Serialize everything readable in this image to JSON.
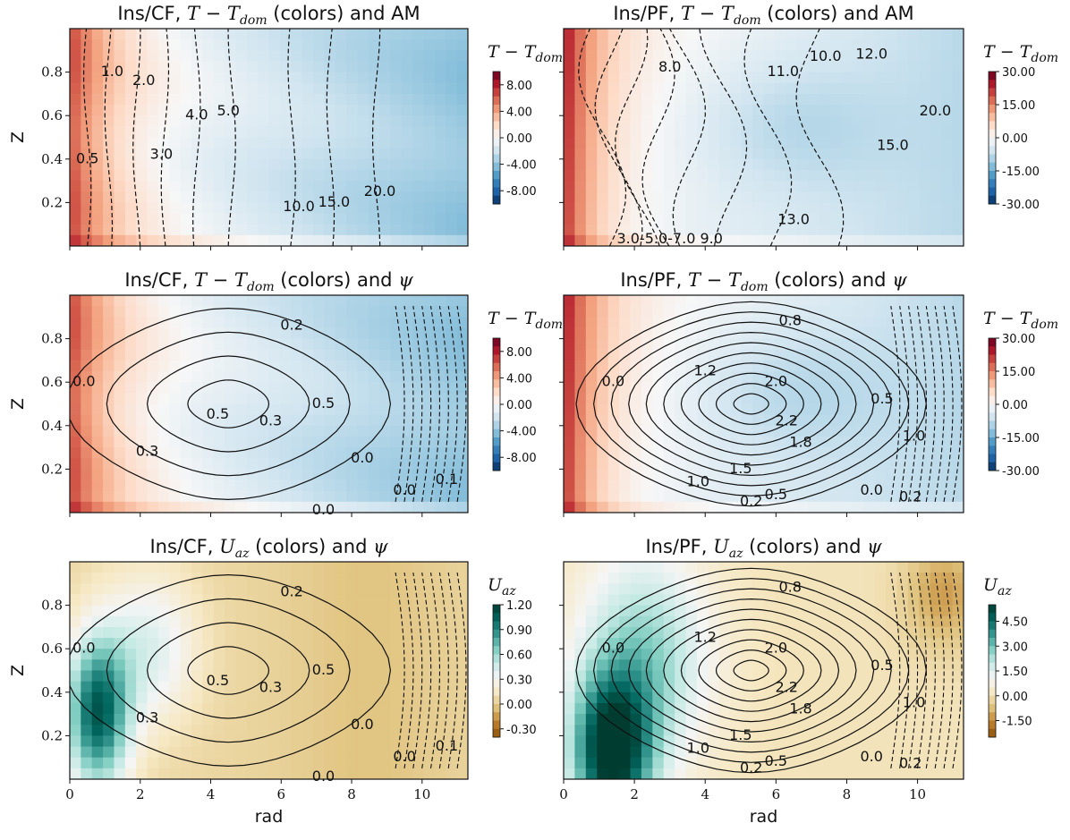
{
  "chart_data": [
    {
      "type": "heatmap",
      "title_parts": [
        "Ins/CF, ",
        "T",
        " − ",
        "T",
        "dom",
        " (colors) and AM"
      ],
      "xlabel": "",
      "ylabel": "Z",
      "xlim": [
        0,
        11.3
      ],
      "ylim": [
        0,
        1
      ],
      "xticks": [
        0,
        2,
        4,
        6,
        8,
        10
      ],
      "yticks": [
        0.2,
        0.4,
        0.6,
        0.8
      ],
      "colormap": "RdBu_r",
      "colorbar_label_parts": [
        "T",
        " − ",
        "T",
        "dom"
      ],
      "colorbar_ticks": [
        "8.00",
        "4.00",
        "0.00",
        "-4.00",
        "-8.00"
      ],
      "colorbar_range": [
        -10,
        10
      ],
      "contour_labels": [
        {
          "text": "0.5",
          "x": 0.5,
          "y": 0.4
        },
        {
          "text": "1.0",
          "x": 1.2,
          "y": 0.8
        },
        {
          "text": "2.0",
          "x": 2.1,
          "y": 0.76
        },
        {
          "text": "3.0",
          "x": 2.6,
          "y": 0.42
        },
        {
          "text": "4.0",
          "x": 3.6,
          "y": 0.6
        },
        {
          "text": "5.0",
          "x": 4.5,
          "y": 0.62
        },
        {
          "text": "10.0",
          "x": 6.5,
          "y": 0.18
        },
        {
          "text": "15.0",
          "x": 7.5,
          "y": 0.2
        },
        {
          "text": "20.0",
          "x": 8.8,
          "y": 0.25
        }
      ]
    },
    {
      "type": "heatmap",
      "title_parts": [
        "Ins/PF, ",
        "T",
        " − ",
        "T",
        "dom",
        " (colors) and AM"
      ],
      "xlabel": "",
      "ylabel": "",
      "xlim": [
        0,
        11.3
      ],
      "ylim": [
        0,
        1
      ],
      "xticks": [
        0,
        2,
        4,
        6,
        8,
        10
      ],
      "yticks": [
        0.2,
        0.4,
        0.6,
        0.8
      ],
      "colormap": "RdBu_r",
      "colorbar_label_parts": [
        "T",
        " − ",
        "T",
        "dom"
      ],
      "colorbar_ticks": [
        "30.00",
        "15.00",
        "0.00",
        "-15.00",
        "-30.00"
      ],
      "colorbar_range": [
        -30,
        30
      ],
      "contour_labels": [
        {
          "text": "8.0",
          "x": 3.0,
          "y": 0.82
        },
        {
          "text": "11.0",
          "x": 6.2,
          "y": 0.8
        },
        {
          "text": "10.0",
          "x": 7.4,
          "y": 0.87
        },
        {
          "text": "12.0",
          "x": 8.7,
          "y": 0.88
        },
        {
          "text": "20.0",
          "x": 10.5,
          "y": 0.62
        },
        {
          "text": "15.0",
          "x": 9.3,
          "y": 0.46
        },
        {
          "text": "13.0",
          "x": 6.5,
          "y": 0.12
        },
        {
          "text": "3.0-5.0-7.0 9.0",
          "x": 3.0,
          "y": 0.03
        }
      ]
    },
    {
      "type": "heatmap",
      "title_parts": [
        "Ins/CF, ",
        "T",
        " − ",
        "T",
        "dom",
        " (colors) and ",
        "ψ"
      ],
      "xlabel": "",
      "ylabel": "Z",
      "xlim": [
        0,
        11.3
      ],
      "ylim": [
        0,
        1
      ],
      "xticks": [
        0,
        2,
        4,
        6,
        8,
        10
      ],
      "yticks": [
        0.2,
        0.4,
        0.6,
        0.8
      ],
      "colormap": "RdBu_r",
      "colorbar_label_parts": [
        "T",
        " − ",
        "T",
        "dom"
      ],
      "colorbar_ticks": [
        "8.00",
        "4.00",
        "0.00",
        "-4.00",
        "-8.00"
      ],
      "colorbar_range": [
        -10,
        10
      ],
      "contour_labels": [
        {
          "text": "0.0",
          "x": 0.4,
          "y": 0.6
        },
        {
          "text": "0.2",
          "x": 6.3,
          "y": 0.86
        },
        {
          "text": "0.5",
          "x": 4.2,
          "y": 0.45
        },
        {
          "text": "0.3",
          "x": 5.7,
          "y": 0.42
        },
        {
          "text": "0.5",
          "x": 7.2,
          "y": 0.5
        },
        {
          "text": "0.3",
          "x": 2.2,
          "y": 0.28
        },
        {
          "text": "0.0",
          "x": 8.3,
          "y": 0.25
        },
        {
          "text": "0.0",
          "x": 9.5,
          "y": 0.1
        },
        {
          "text": "0.1",
          "x": 10.7,
          "y": 0.15
        },
        {
          "text": "0.0",
          "x": 7.2,
          "y": 0.01
        }
      ]
    },
    {
      "type": "heatmap",
      "title_parts": [
        "Ins/PF, ",
        "T",
        " − ",
        "T",
        "dom",
        " (colors) and ",
        "ψ"
      ],
      "xlabel": "",
      "ylabel": "",
      "xlim": [
        0,
        11.3
      ],
      "ylim": [
        0,
        1
      ],
      "xticks": [
        0,
        2,
        4,
        6,
        8,
        10
      ],
      "yticks": [
        0.2,
        0.4,
        0.6,
        0.8
      ],
      "colormap": "RdBu_r",
      "colorbar_label_parts": [
        "T",
        " − ",
        "T",
        "dom"
      ],
      "colorbar_ticks": [
        "30.00",
        "15.00",
        "0.00",
        "-15.00",
        "-30.00"
      ],
      "colorbar_range": [
        -30,
        30
      ],
      "contour_labels": [
        {
          "text": "0.0",
          "x": 1.4,
          "y": 0.6
        },
        {
          "text": "0.8",
          "x": 6.4,
          "y": 0.88
        },
        {
          "text": "1.2",
          "x": 4.0,
          "y": 0.65
        },
        {
          "text": "2.0",
          "x": 6.0,
          "y": 0.6
        },
        {
          "text": "2.2",
          "x": 6.3,
          "y": 0.42
        },
        {
          "text": "1.8",
          "x": 6.7,
          "y": 0.32
        },
        {
          "text": "1.5",
          "x": 5.0,
          "y": 0.2
        },
        {
          "text": "1.0",
          "x": 3.8,
          "y": 0.14
        },
        {
          "text": "0.5",
          "x": 6.0,
          "y": 0.08
        },
        {
          "text": "0.2",
          "x": 5.3,
          "y": 0.05
        },
        {
          "text": "0.5",
          "x": 9.0,
          "y": 0.52
        },
        {
          "text": "1.0",
          "x": 9.9,
          "y": 0.35
        },
        {
          "text": "0.0",
          "x": 8.7,
          "y": 0.1
        },
        {
          "text": "0.2",
          "x": 9.8,
          "y": 0.07
        }
      ]
    },
    {
      "type": "heatmap",
      "title_parts": [
        "Ins/CF, ",
        "U",
        "",
        "",
        "az",
        " (colors) and ",
        "ψ"
      ],
      "xlabel": "rad",
      "ylabel": "Z",
      "xlim": [
        0,
        11.3
      ],
      "ylim": [
        0,
        1
      ],
      "xticks": [
        0,
        2,
        4,
        6,
        8,
        10
      ],
      "yticks": [
        0.2,
        0.4,
        0.6,
        0.8
      ],
      "colormap": "BrBG",
      "colorbar_label_parts": [
        "U",
        "",
        "",
        "az"
      ],
      "colorbar_ticks": [
        "1.20",
        "0.90",
        "0.60",
        "0.30",
        "0.00",
        "-0.30"
      ],
      "colorbar_range": [
        -0.4,
        1.2
      ],
      "contour_labels": [
        {
          "text": "0.0",
          "x": 0.4,
          "y": 0.6
        },
        {
          "text": "0.2",
          "x": 6.3,
          "y": 0.86
        },
        {
          "text": "0.5",
          "x": 4.2,
          "y": 0.45
        },
        {
          "text": "0.3",
          "x": 5.7,
          "y": 0.42
        },
        {
          "text": "0.5",
          "x": 7.2,
          "y": 0.5
        },
        {
          "text": "0.3",
          "x": 2.2,
          "y": 0.28
        },
        {
          "text": "0.0",
          "x": 8.3,
          "y": 0.25
        },
        {
          "text": "0.0",
          "x": 9.5,
          "y": 0.1
        },
        {
          "text": "0.1",
          "x": 10.7,
          "y": 0.15
        },
        {
          "text": "0.0",
          "x": 7.2,
          "y": 0.01
        }
      ]
    },
    {
      "type": "heatmap",
      "title_parts": [
        "Ins/PF, ",
        "U",
        "",
        "",
        "az",
        " (colors) and ",
        "ψ"
      ],
      "xlabel": "rad",
      "ylabel": "",
      "xlim": [
        0,
        11.3
      ],
      "ylim": [
        0,
        1
      ],
      "xticks": [
        0,
        2,
        4,
        6,
        8,
        10
      ],
      "yticks": [
        0.2,
        0.4,
        0.6,
        0.8
      ],
      "colormap": "BrBG",
      "colorbar_label_parts": [
        "U",
        "",
        "",
        "az"
      ],
      "colorbar_ticks": [
        "4.50",
        "3.00",
        "1.50",
        "0.00",
        "-1.50"
      ],
      "colorbar_range": [
        -2.5,
        5.5
      ],
      "contour_labels": [
        {
          "text": "0.0",
          "x": 1.4,
          "y": 0.6
        },
        {
          "text": "0.8",
          "x": 6.4,
          "y": 0.88
        },
        {
          "text": "1.2",
          "x": 4.0,
          "y": 0.65
        },
        {
          "text": "2.0",
          "x": 6.0,
          "y": 0.6
        },
        {
          "text": "2.2",
          "x": 6.3,
          "y": 0.42
        },
        {
          "text": "1.8",
          "x": 6.7,
          "y": 0.32
        },
        {
          "text": "1.5",
          "x": 5.0,
          "y": 0.2
        },
        {
          "text": "1.0",
          "x": 3.8,
          "y": 0.14
        },
        {
          "text": "0.5",
          "x": 6.0,
          "y": 0.08
        },
        {
          "text": "0.2",
          "x": 5.3,
          "y": 0.05
        },
        {
          "text": "0.5",
          "x": 9.0,
          "y": 0.52
        },
        {
          "text": "1.0",
          "x": 9.9,
          "y": 0.35
        },
        {
          "text": "0.0",
          "x": 8.7,
          "y": 0.1
        },
        {
          "text": "0.2",
          "x": 9.8,
          "y": 0.07
        }
      ]
    }
  ]
}
